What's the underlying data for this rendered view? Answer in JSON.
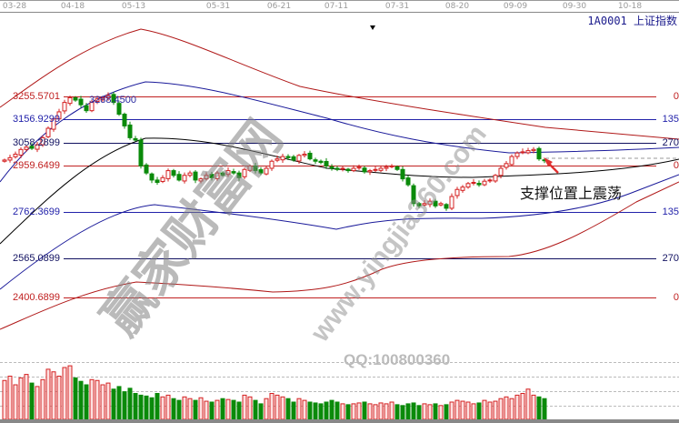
{
  "header": {
    "dates": [
      "03-28",
      "04-18",
      "05-13",
      "05-31",
      "06-21",
      "07-11",
      "07-31",
      "08-20",
      "09-09",
      "09-30",
      "10-18"
    ],
    "title": "1A0001 上证指数"
  },
  "levels": [
    {
      "price": "3255.5701",
      "right": "0",
      "color": "#c02020"
    },
    {
      "price": "3156.9299",
      "right": "135",
      "color": "#2222aa"
    },
    {
      "price": "3058.2899",
      "right": "270",
      "color": "#101060"
    },
    {
      "price": "2959.6499",
      "right": "0",
      "color": "#c02020"
    },
    {
      "price": "2762.3699",
      "right": "135",
      "color": "#2222aa"
    },
    {
      "price": "2565.0899",
      "right": "270",
      "color": "#101060"
    },
    {
      "price": "2400.6899",
      "right": "0",
      "color": "#c02020"
    }
  ],
  "high_label": "3288.4500",
  "annotation": "支撑位置上震荡",
  "watermark": {
    "brand": "赢家财富网",
    "url": "www.yingjia360.com",
    "qq": "QQ:100800360"
  },
  "colors": {
    "up": "#d42020",
    "down": "#0a8a0a",
    "ma": "#000000",
    "band_blue": "#1a1a9a",
    "band_red": "#b01818"
  },
  "chart_data": {
    "type": "candlestick",
    "closes": [
      2985,
      2995,
      3010,
      3030,
      3040,
      3035,
      3050,
      3080,
      3120,
      3160,
      3190,
      3230,
      3250,
      3240,
      3220,
      3195,
      3230,
      3245,
      3250,
      3260,
      3230,
      3180,
      3130,
      3080,
      3070,
      2960,
      2930,
      2900,
      2890,
      2910,
      2940,
      2920,
      2900,
      2920,
      2930,
      2900,
      2905,
      2920,
      2910,
      2930,
      2920,
      2940,
      2930,
      2910,
      2945,
      2960,
      2940,
      2930,
      2950,
      2980,
      2990,
      3000,
      2995,
      2985,
      3005,
      3010,
      2990,
      2980,
      2975,
      2960,
      2950,
      2945,
      2950,
      2940,
      2950,
      2955,
      2935,
      2940,
      2945,
      2950,
      2955,
      2960,
      2945,
      2905,
      2880,
      2800,
      2790,
      2800,
      2810,
      2790,
      2800,
      2780,
      2830,
      2860,
      2870,
      2885,
      2890,
      2880,
      2895,
      2900,
      2920,
      2950,
      2970,
      3000,
      3015,
      3020,
      3025,
      3030,
      2990,
      2985
    ],
    "volumes": [
      45,
      50,
      40,
      48,
      52,
      42,
      38,
      46,
      58,
      55,
      50,
      60,
      62,
      48,
      44,
      40,
      46,
      45,
      40,
      42,
      35,
      38,
      32,
      36,
      30,
      28,
      27,
      25,
      30,
      26,
      28,
      24,
      22,
      26,
      24,
      22,
      25,
      21,
      20,
      22,
      24,
      23,
      22,
      20,
      28,
      26,
      22,
      18,
      24,
      30,
      28,
      26,
      24,
      20,
      24,
      22,
      20,
      19,
      18,
      20,
      22,
      20,
      18,
      17,
      18,
      19,
      20,
      18,
      17,
      19,
      18,
      20,
      17,
      16,
      18,
      19,
      16,
      18,
      17,
      18,
      16,
      17,
      20,
      22,
      21,
      20,
      18,
      19,
      22,
      20,
      21,
      24,
      26,
      24,
      28,
      30,
      35,
      28,
      26,
      24
    ]
  }
}
